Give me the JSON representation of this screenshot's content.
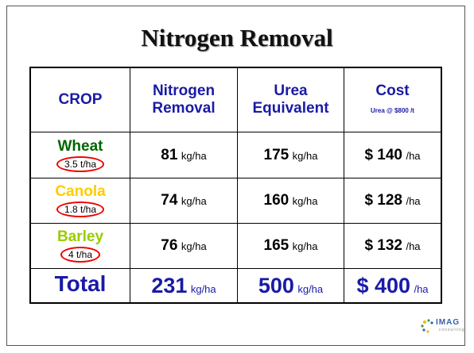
{
  "title": "Nitrogen Removal",
  "table": {
    "header": {
      "crop": "CROP",
      "nitrogen": [
        "Nitrogen",
        "Removal"
      ],
      "urea": [
        "Urea",
        "Equivalent"
      ],
      "cost": "Cost",
      "cost_note": "Urea @ $800 /t"
    },
    "rows": [
      {
        "crop": "Wheat",
        "color": "#006600",
        "yield": "3.5 t/ha",
        "nitrogen": {
          "value": "81",
          "unit": "kg/ha"
        },
        "urea": {
          "value": "175",
          "unit": "kg/ha"
        },
        "cost": {
          "value": "$ 140",
          "unit": "/ha"
        }
      },
      {
        "crop": "Canola",
        "color": "#ffcc00",
        "yield": "1.8 t/ha",
        "nitrogen": {
          "value": "74",
          "unit": "kg/ha"
        },
        "urea": {
          "value": "160",
          "unit": "kg/ha"
        },
        "cost": {
          "value": "$ 128",
          "unit": "/ha"
        }
      },
      {
        "crop": "Barley",
        "color": "#99cc00",
        "yield": "4 t/ha",
        "nitrogen": {
          "value": "76",
          "unit": "kg/ha"
        },
        "urea": {
          "value": "165",
          "unit": "kg/ha"
        },
        "cost": {
          "value": "$ 132",
          "unit": "/ha"
        }
      }
    ],
    "total": {
      "label": "Total",
      "nitrogen": {
        "value": "231",
        "unit": "kg/ha"
      },
      "urea": {
        "value": "500",
        "unit": "kg/ha"
      },
      "cost": {
        "value": "$ 400",
        "unit": "/ha"
      }
    }
  },
  "logo": {
    "name": "IMAG",
    "sub": "consulting"
  }
}
